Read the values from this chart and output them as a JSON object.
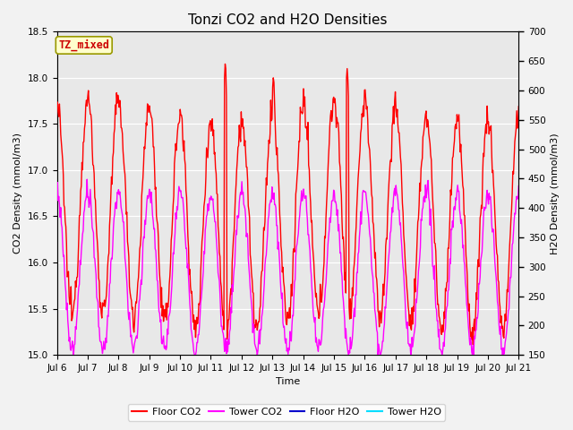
{
  "title": "Tonzi CO2 and H2O Densities",
  "xlabel": "Time",
  "ylabel_left": "CO2 Density (mmol/m3)",
  "ylabel_right": "H2O Density (mmol/m3)",
  "annotation_text": "TZ_mixed",
  "annotation_color": "#CC0000",
  "annotation_bg": "#FFFFCC",
  "annotation_edge": "#999900",
  "xlim_days": [
    6,
    21
  ],
  "ylim_left": [
    15.0,
    18.5
  ],
  "ylim_right": [
    150,
    700
  ],
  "xtick_positions": [
    6,
    7,
    8,
    9,
    10,
    11,
    12,
    13,
    14,
    15,
    16,
    17,
    18,
    19,
    20,
    21
  ],
  "xtick_labels": [
    "Jul 6",
    "Jul 7",
    "Jul 8",
    "Jul 9",
    "Jul 10",
    "Jul 11",
    "Jul 12",
    "Jul 13",
    "Jul 14",
    "Jul 15",
    "Jul 16",
    "Jul 17",
    "Jul 18",
    "Jul 19",
    "Jul 20",
    "Jul 21"
  ],
  "yticks_left": [
    15.0,
    15.5,
    16.0,
    16.5,
    17.0,
    17.5,
    18.0,
    18.5
  ],
  "yticks_right": [
    150,
    200,
    250,
    300,
    350,
    400,
    450,
    500,
    550,
    600,
    650,
    700
  ],
  "colors": {
    "floor_co2": "#FF0000",
    "tower_co2": "#FF00FF",
    "floor_h2o": "#0000CC",
    "tower_h2o": "#00DDFF"
  },
  "legend_labels": [
    "Floor CO2",
    "Tower CO2",
    "Floor H2O",
    "Tower H2O"
  ],
  "background_color": "#E8E8E8",
  "grid_color": "#FFFFFF",
  "fig_bg": "#F2F2F2",
  "title_fontsize": 11,
  "axis_fontsize": 8,
  "tick_fontsize": 7.5,
  "linewidth_co2": 1.0,
  "linewidth_h2o": 1.0
}
